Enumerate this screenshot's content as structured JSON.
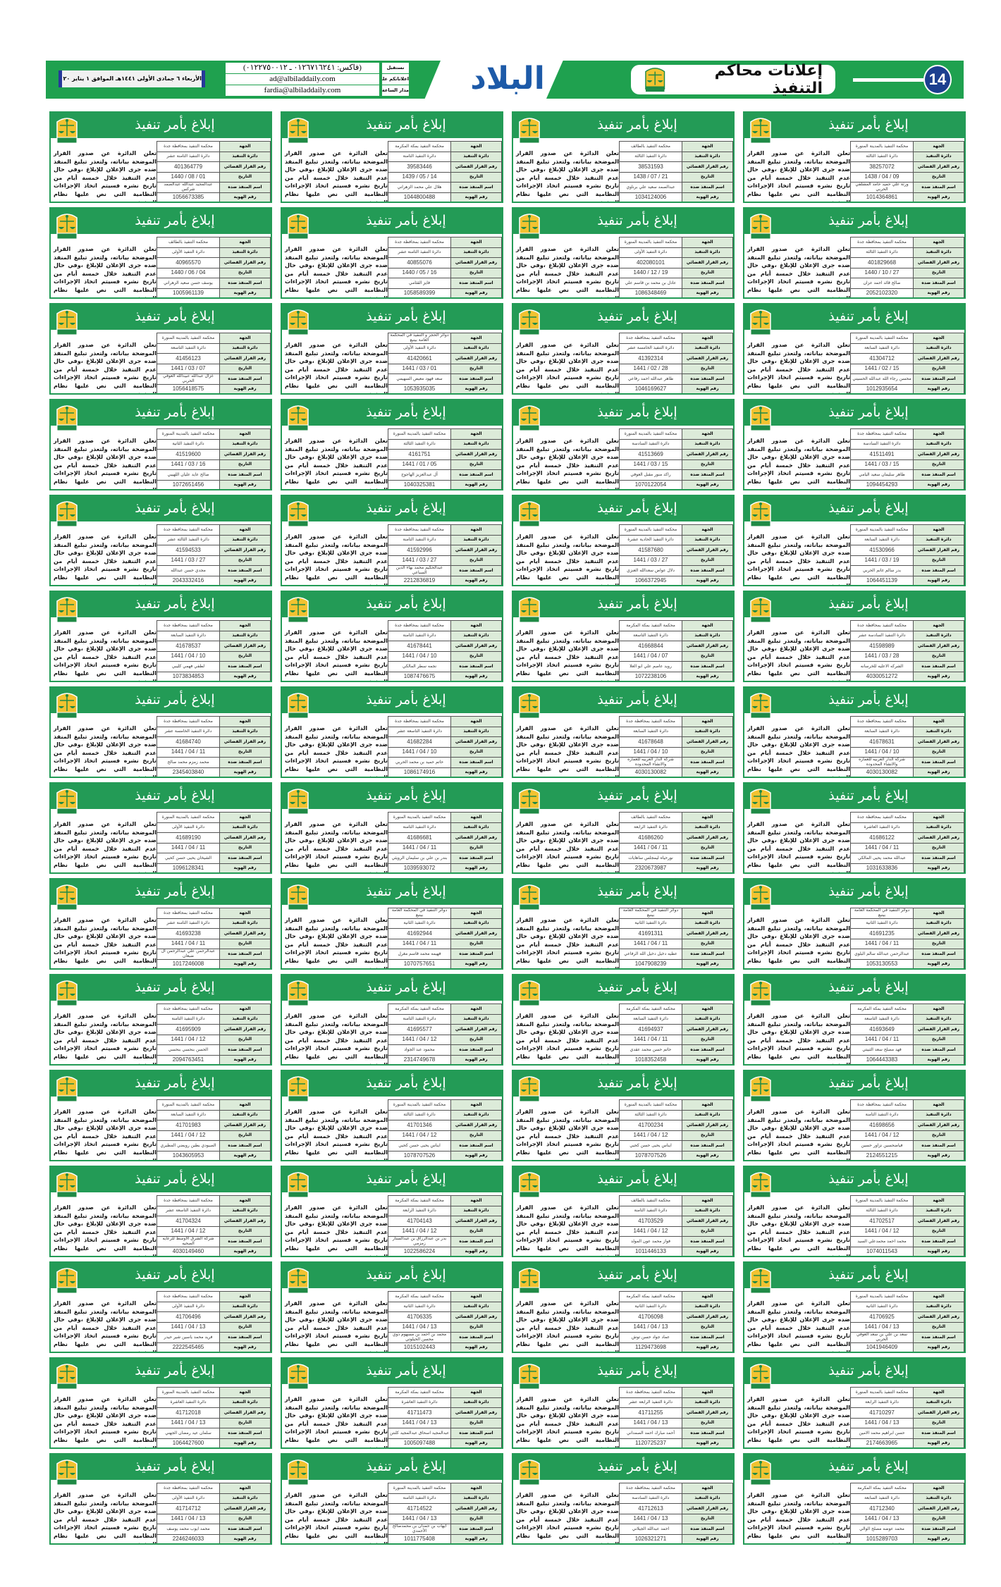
{
  "masthead": {
    "page_number": "14",
    "section_title": "إعلانات محاكم التنفيذ",
    "logo_text": "البلاد",
    "date_line": "الأربعاء ٦ جمادى الأولى ١٤٤١هـ الموافق ١ يناير ٢٠٢٠م السنة ٨٩ العدد ٢٢٨٦٦",
    "contact": [
      {
        "label": "نستقبل",
        "value": "(فاكس: ٠١٢٦٧١٦٢٤١ ـ ٠١٢٢٧٥٠٠١٢)"
      },
      {
        "label": "اعلاناتكم على",
        "value": "ad@albiladdaily.com"
      },
      {
        "label": "مدار الساعة",
        "value": "fardia@albiladdaily.com"
      }
    ],
    "colors": {
      "green": "#1fa14f",
      "blue": "#1c3f8f",
      "logo_blue": "#1d5aa8"
    }
  },
  "notice_template": {
    "title": "إبلاغ بأمر تنفيذ",
    "labels": [
      "الجهة",
      "دائرة التنفيذ",
      "رقم القرار القضائي",
      "التاريخ",
      "اسم المنفذ ضده",
      "رقم الهوية"
    ],
    "body": "تعلن الدائرة عن صدور القرار الموضحة بياناته، ولتعذر تبليغ المنفذ ضده جرى الإعلان للإبلاغ ،وفي حال عدم التنفيذ خلال خمسة أيام من تاريخ نشره فسيتم اتخاذ الإجراءات النظامية التي نص عليها نظام التنفيذ.",
    "emblem_icon": "ministry-of-justice-emblem",
    "colors": {
      "header": "#239b56",
      "label_bg": "#dcebd9"
    }
  },
  "notices": [
    {
      "court": "محكمة التنفيذ بالمدينة المنورة",
      "circuit": "دائرة التنفيذ الثالثة",
      "decision": "38257072",
      "date": "09 / 04 / 1438",
      "name": "ورثة علي حميد حامد المشلفي الحربي",
      "id": "1014364861"
    },
    {
      "court": "محكمة التنفيذ بالطائف",
      "circuit": "دائرة التنفيذ الثالثة",
      "decision": "38531593",
      "date": "21 / 07 / 1438",
      "name": "عبدالصمد سعيد علي برناوي",
      "id": "1034124006"
    },
    {
      "court": "محكمة التنفيذ بمكة المكرمة",
      "circuit": "دائرة التنفيذ الثامنة",
      "decision": "39583446",
      "date": "14 / 05 / 1439",
      "name": "هلال علي محمد الزهراني",
      "id": "1044800488"
    },
    {
      "court": "محكمة التنفيذ بمحافظة جدة",
      "circuit": "دائرة التنفيذ الثامنة عشر",
      "decision": "401364779",
      "date": "01 / 08 / 1440",
      "name": "عبدالمجيد عبدالله عبدالصمد شركس",
      "id": "1056673385"
    },
    {
      "court": "محكمة التنفيذ بمحافظة جدة",
      "circuit": "دائرة التنفيذ الثالثة",
      "decision": "401829668",
      "date": "27 / 10 / 1440",
      "name": "صالح قائد احمد عزان",
      "id": "2052102320"
    },
    {
      "court": "محكمة التنفيذ بالمدينة المنورة",
      "circuit": "دائرة التنفيذ الأولى",
      "decision": "402080101",
      "date": "19 / 12 / 1440",
      "name": "عادل بن محمد بن قاسم علي",
      "id": "1086348469"
    },
    {
      "court": "محكمة التنفيذ بمحافظة جدة",
      "circuit": "دائرة التنفيذ الثامنة عشر",
      "decision": "40855076",
      "date": "16 / 05 / 1440",
      "name": "فايز القثامي",
      "id": "1058589399"
    },
    {
      "court": "محكمة التنفيذ بالطائف",
      "circuit": "دائرة التنفيذ الأولى",
      "decision": "40965570",
      "date": "04 / 06 / 1440",
      "name": "يوسف حسن سعيد الزهراني",
      "id": "1005961139"
    },
    {
      "court": "محكمة التنفيذ بالمدينة المنورة",
      "circuit": "دائرة التنفيذ السابعة",
      "decision": "41304712",
      "date": "15 / 02 / 1441",
      "name": "محسن رجاء الله عبدالله الحسيني",
      "id": "1012935654"
    },
    {
      "court": "محكمة التنفيذ بمحافظة جدة",
      "circuit": "دائرة التنفيذ الخامسة عشر",
      "decision": "41392314",
      "date": "28 / 02 / 1441",
      "name": "طاهر عبدالله احمد رفاعي",
      "id": "1046169627"
    },
    {
      "court": "دوائر الحجز و التنفيذ في المحكمة العامة بينبع",
      "circuit": "دائرة التنفيذ الأولى",
      "decision": "41420661",
      "date": "01 / 03 / 1441",
      "name": "سعد فهود معيض السهيمي",
      "id": "1053935035"
    },
    {
      "court": "محكمة التنفيذ بالمدينة المنورة",
      "circuit": "دائرة التنفيذ التاسعة",
      "decision": "41456123",
      "date": "07 / 03 / 1441",
      "name": "غزال عبدالله عبيدالله العوفي الحربي",
      "id": "1056418575"
    },
    {
      "court": "محكمة التنفيذ بمحافظة جدة",
      "circuit": "دائرة التنفيذ السادسة",
      "decision": "41511491",
      "date": "15 / 03 / 1441",
      "name": "طاهر سليمان سعيد اليامي",
      "id": "1094454293"
    },
    {
      "court": "محكمة التنفيذ بالمدينة المنورة",
      "circuit": "دائرة التنفيذ السادسة",
      "decision": "41513669",
      "date": "15 / 03 / 1441",
      "name": "راكد منور مقبل العوفي",
      "id": "1070122054"
    },
    {
      "court": "محكمة التنفيذ بالمدينة المنورة",
      "circuit": "دائرة التنفيذ الثالثة",
      "decision": "4161751",
      "date": "05 / 01 / 1441",
      "name": "آل عبدالعزيز الهاجوج",
      "id": "1040325381"
    },
    {
      "court": "محكمة التنفيذ بالمدينة المنورة",
      "circuit": "دائرة التنفيذ الثانية",
      "decision": "41519600",
      "date": "16 / 03 / 1441",
      "name": "صالح عايد عليان اللهيبي",
      "id": "1072651456"
    },
    {
      "court": "محكمة التنفيذ بالمدينة المنورة",
      "circuit": "دائرة التنفيذ السابعة",
      "decision": "41530966",
      "date": "19 / 03 / 1441",
      "name": "بدر سالم غانم الحربي",
      "id": "1064451139"
    },
    {
      "court": "محكمة التنفيذ بالمدينة المنورة",
      "circuit": "دائرة التنفيذ الحادية عشرة",
      "decision": "41587680",
      "date": "27 / 03 / 1441",
      "name": "دلال عواض سعدالله العنزي",
      "id": "1066372945"
    },
    {
      "court": "محكمة التنفيذ بمحافظة جدة",
      "circuit": "دائرة التنفيذ الثامنة",
      "decision": "41592996",
      "date": "27 / 03 / 1441",
      "name": "عبدالحكيم محمد بهاء الدين السباعي",
      "id": "2212836819"
    },
    {
      "court": "محكمة التنفيذ بمحافظة جدة",
      "circuit": "دائرة التنفيذ الثالثة عشر",
      "decision": "41594533",
      "date": "27 / 03 / 1441",
      "name": "مجدي حسن عبدالله",
      "id": "2043332416"
    },
    {
      "court": "محكمة التنفيذ بمحافظة جدة",
      "circuit": "دائرة التنفيذ السادسة عشر",
      "decision": "41598989",
      "date": "28 / 03 / 1441",
      "name": "الشركه الاعليه للخرسانه",
      "id": "4030051272"
    },
    {
      "court": "محكمة التنفيذ بمكة المكرمة",
      "circuit": "دائرة التنفيذ التاسعة",
      "decision": "41668844",
      "date": "07 / 04 / 1441",
      "name": "رويد عاصم علي ابو العلا",
      "id": "1072238106"
    },
    {
      "court": "محكمة التنفيذ بمحافظة جدة",
      "circuit": "دائرة التنفيذ الثامنة",
      "decision": "41678441",
      "date": "10 / 04 / 1441",
      "name": "نجمه سطر المالكي",
      "id": "1087476675"
    },
    {
      "court": "محكمة التنفيذ بمحافظة جدة",
      "circuit": "دائرة التنفيذ السابعة",
      "decision": "41678537",
      "date": "10 / 04 / 1441",
      "name": "لطفي فهمي كليبي",
      "id": "1073834853"
    },
    {
      "court": "محكمة التنفيذ بمحافظة جدة",
      "circuit": "دائرة التنفيذ السابعة",
      "decision": "41678631",
      "date": "10 / 04 / 1441",
      "name": "شركة الدار العربيه للعماره والانشاء المحدوده",
      "id": "4030130082"
    },
    {
      "court": "محكمة التنفيذ بمحافظة جدة",
      "circuit": "دائرة التنفيذ السابعة",
      "decision": "41678648",
      "date": "10 / 04 / 1441",
      "name": "شركة الدار العربيه للعماره والانشاء المحدوده",
      "id": "4030130082"
    },
    {
      "court": "محكمة التنفيذ بمحافظة جدة",
      "circuit": "دائرة التنفيذ التاسعة عشر",
      "decision": "41682284",
      "date": "10 / 04 / 1441",
      "name": "حاتم حميد بن محمد الحربي",
      "id": "1086174916"
    },
    {
      "court": "محكمة التنفيذ بمحافظة جدة",
      "circuit": "دائرة التنفيذ الخامسة عشر",
      "decision": "41684740",
      "date": "11 / 04 / 1441",
      "name": "محمد زمزم محمد صالح",
      "id": "2345403840"
    },
    {
      "court": "محكمة التنفيذ بمحافظة جدة",
      "circuit": "دائرة التنفيذ العاشرة",
      "decision": "41686122",
      "date": "11 / 04 / 1441",
      "name": "عبدالله محمد يحيى المالكي",
      "id": "1031633836"
    },
    {
      "court": "محكمة التنفيذ بالطائف",
      "circuit": "دائرة التنفيذ الرابعة",
      "decision": "41686260",
      "date": "11 / 04 / 1441",
      "name": "نورحياه ليمجلس ساهايات",
      "id": "2320673987"
    },
    {
      "court": "محكمة التنفيذ بالمدينة المنورة",
      "circuit": "دائرة التنفيذ الثامنة",
      "decision": "41686681",
      "date": "11 / 04 / 1441",
      "name": "بندر بن علي بن سليمان الرويثي",
      "id": "1039593072"
    },
    {
      "court": "محكمة التنفيذ بالمدينة المنورة",
      "circuit": "دائرة التنفيذ الأولى",
      "decision": "41689190",
      "date": "11 / 04 / 1441",
      "name": "الشيخان يحيى حسن كحيي",
      "id": "1096128341"
    },
    {
      "court": "دوائر التنفيذ في المحكمة العامة بينبع",
      "circuit": "دائرة التنفيذ الثانية",
      "decision": "41691235",
      "date": "11 / 04 / 1441",
      "name": "عبدالرحمن عبدالله سالم البلوي",
      "id": "1053130553"
    },
    {
      "court": "دوائر التنفيذ في المحكمة العامة بينبع",
      "circuit": "دائرة التنفيذ الثانية",
      "decision": "41691311",
      "date": "11 / 04 / 1441",
      "name": "عطيه دخيل دخيل الله الرفاعي",
      "id": "1047908239"
    },
    {
      "court": "دوائر التنفيذ في المحكمة العامة بينبع",
      "circuit": "دائرة التنفيذ الثانية",
      "decision": "41692944",
      "date": "11 / 04 / 1441",
      "name": "فهيمه محمد قاسم مغرل",
      "id": "1070757651"
    },
    {
      "court": "محكمة التنفيذ بمحافظة جدة",
      "circuit": "دائرة التنفيذ الثامنة عشر",
      "decision": "41693238",
      "date": "11 / 04 / 1441",
      "name": "عبدالرحمن علي عبدالرحمن ال ضبعان",
      "id": "1017246008"
    },
    {
      "court": "محكمة التنفيذ بمكة المكرمة",
      "circuit": "دائرة التنفيذ التاسعة",
      "decision": "41693649",
      "date": "11 / 04 / 1441",
      "name": "فهد مصلح سعد الثبيتي",
      "id": "1064443383"
    },
    {
      "court": "محكمة التنفيذ بمكة المكرمة",
      "circuit": "دائرة التنفيذ السابعة",
      "decision": "41694937",
      "date": "11 / 04 / 1441",
      "name": "حاتم حسن محمد عقدي",
      "id": "1018352458"
    },
    {
      "court": "محكمة التنفيذ بمكة المكرمة",
      "circuit": "دائرة التنفيذ الثامنة",
      "decision": "41695577",
      "date": "12 / 04 / 1441",
      "name": "محمود عبد الجواد",
      "id": "2314749678"
    },
    {
      "court": "محكمة التنفيذ بمحافظة جدة",
      "circuit": "دائرة التنفيذ الثامنة",
      "decision": "41695909",
      "date": "12 / 04 / 1441",
      "name": "الحسن بنحسي بنحسي",
      "id": "2094763451"
    },
    {
      "court": "محكمة التنفيذ بمحافظة جدة",
      "circuit": "دائرة التنفيذ الثامنة",
      "decision": "41698656",
      "date": "12 / 04 / 1441",
      "name": "فياضحسين نزاور حسين",
      "id": "2124551215"
    },
    {
      "court": "محكمة التنفيذ بالمدينة المنورة",
      "circuit": "دائرة التنفيذ الثالثة",
      "decision": "41700234",
      "date": "12 / 04 / 1441",
      "name": "ايناس يحيى حسن كحيي",
      "id": "1078707526"
    },
    {
      "court": "محكمة التنفيذ بالمدينة المنورة",
      "circuit": "دائرة التنفيذ الثالثة",
      "decision": "41701346",
      "date": "12 / 04 / 1441",
      "name": "ايناس يحيى حسن كحيي",
      "id": "1078707526"
    },
    {
      "court": "محكمة التنفيذ بالمدينة المنورة",
      "circuit": "دائرة التنفيذ السابعة",
      "decision": "41701983",
      "date": "12 / 04 / 1441",
      "name": "الصيودي بطين رويضي المطيري",
      "id": "1043605953"
    },
    {
      "court": "محكمة التنفيذ بالمدينة المنورة",
      "circuit": "دائرة التنفيذ الثالثة",
      "decision": "41702517",
      "date": "12 / 04 / 1441",
      "name": "محمد احمد محمدعلي السيد",
      "id": "1074011543"
    },
    {
      "court": "محكمة التنفيذ بالطائف",
      "circuit": "دائرة التنفيذ الثامنة",
      "decision": "41703529",
      "date": "12 / 04 / 1441",
      "name": "فواز محمد عون المولد",
      "id": "1011446133"
    },
    {
      "court": "محكمة التنفيذ بمكة المكرمة",
      "circuit": "دائرة التنفيذ الرابعة",
      "decision": "41704143",
      "date": "12 / 04 / 1441",
      "name": "بدر بن عبدالرزاق بن عبدالستار زمزمي",
      "id": "1022586224"
    },
    {
      "court": "محكمة التنفيذ بمحافظة جدة",
      "circuit": "دائرة التنفيذ التاسعة عشر",
      "decision": "41704324",
      "date": "12 / 04 / 1441",
      "name": "شركة الشرق الاوسط للرعايه الصحيه",
      "id": "4030149460"
    },
    {
      "court": "محكمة التنفيذ بالمدينة المنورة",
      "circuit": "دائرة التنفيذ الثانية",
      "decision": "41706925",
      "date": "13 / 04 / 1441",
      "name": "سعد بن علي بن سعد العوفي الحربي",
      "id": "1041946409"
    },
    {
      "court": "محكمة التنفيذ بمكة المكرمة",
      "circuit": "دائرة التنفيذ الثانية",
      "decision": "41706098",
      "date": "13 / 04 / 1441",
      "name": "عماد جواد حسن توش",
      "id": "1129473698"
    },
    {
      "court": "محكمة التنفيذ بمكة المكرمة",
      "circuit": "دائرة التنفيذ الثانية",
      "decision": "41706335",
      "date": "13 / 04 / 1441",
      "name": "محمد بن احمد بن مسهوم ذوي محسن الحيلوتي",
      "id": "1015102443"
    },
    {
      "court": "محكمة التنفيذ بمحافظة جدة",
      "circuit": "دائرة التنفيذ الأولى",
      "decision": "41706496",
      "date": "13 / 04 / 1441",
      "name": "فريد محمد ياسين شير حيدر",
      "id": "2222545465"
    },
    {
      "court": "محكمة التنفيذ بالمدينة المنورة",
      "circuit": "دائرة التنفيذ الرابعة",
      "decision": "41710297",
      "date": "13 / 04 / 1441",
      "name": "حسن ابراهيم محمد الامين",
      "id": "2174663965"
    },
    {
      "court": "محكمة التنفيذ بمحافظة جدة",
      "circuit": "دائرة التنفيذ الرابعة عشر",
      "decision": "41711255",
      "date": "13 / 04 / 1441",
      "name": "أحمد مبارك احمد الصمداني",
      "id": "1120725237"
    },
    {
      "court": "محكمة التنفيذ بمكة المكرمة",
      "circuit": "دائرة التنفيذ العاشرة",
      "decision": "41711473",
      "date": "13 / 04 / 1441",
      "name": "عبدالمجيد اسحاق عبدالمجيد كلنتن",
      "id": "1005097488"
    },
    {
      "court": "محكمة التنفيذ بالمدينة المنورة",
      "circuit": "دائرة التنفيذ العاشرة",
      "decision": "41712018",
      "date": "13 / 04 / 1441",
      "name": "سلمان عيد رمضان الجهني",
      "id": "1064427600"
    },
    {
      "court": "محكمة التنفيذ بمكة المكرمة",
      "circuit": "دائرة التنفيذ السابعة",
      "decision": "41712340",
      "date": "13 / 04 / 1441",
      "name": "محمد عوضه مصلح الوالي",
      "id": "1015289703"
    },
    {
      "court": "محكمة التنفيذ بمحافظة جدة",
      "circuit": "دائرة التنفيذ السادسة",
      "decision": "41712613",
      "date": "13 / 04 / 1441",
      "name": "احمد عبدالله الجيلاني",
      "id": "1026321271"
    },
    {
      "court": "محكمة التنفيذ بالمدينة المنورة",
      "circuit": "دائرة التنفيذ الثامنة",
      "decision": "41714522",
      "date": "13 / 04 / 1441",
      "name": "ايهاب بن حمدان بن محمدصالح الأحمدي",
      "id": "1011775408"
    },
    {
      "court": "محكمة التنفيذ بمحافظة جدة",
      "circuit": "دائرة التنفيذ الأولى",
      "decision": "41714712",
      "date": "13 / 04 / 1441",
      "name": "محمد ايوب محمد يوسف",
      "id": "2246246033"
    }
  ]
}
